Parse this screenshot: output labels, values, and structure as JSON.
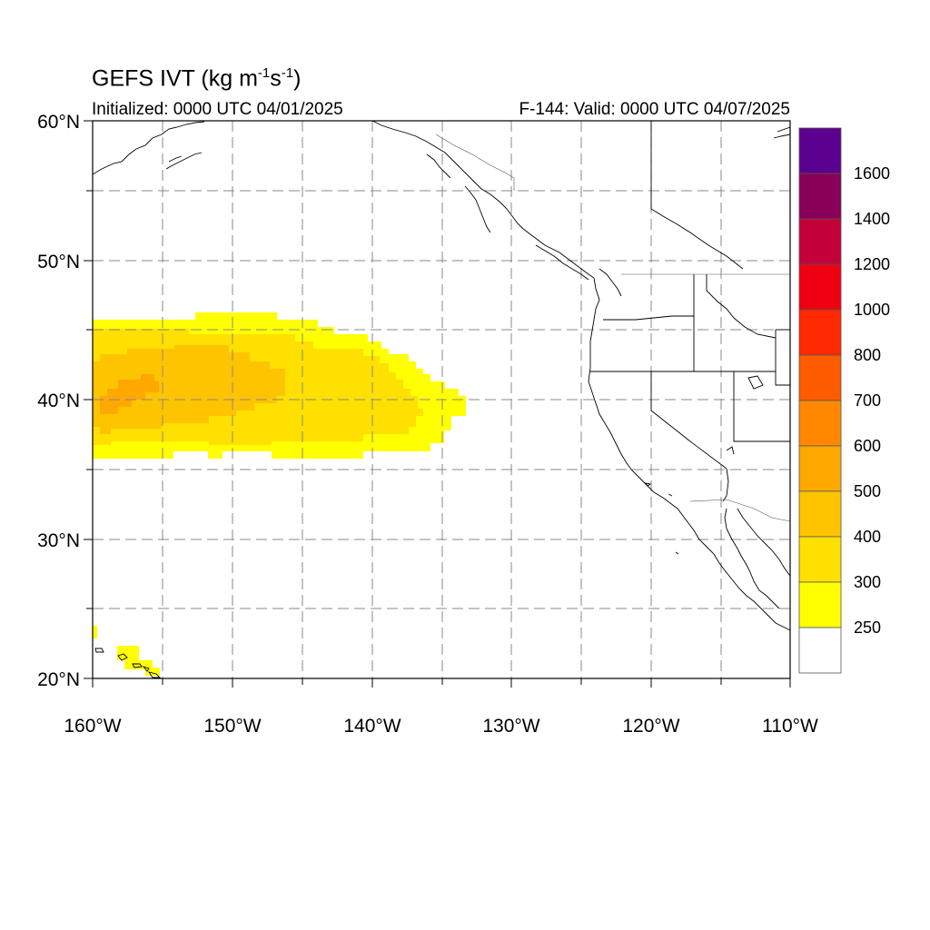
{
  "header": {
    "title_main": "GEFS IVT (kg m",
    "title_exp1": "-1",
    "title_mid": "s",
    "title_exp2": "-1",
    "title_end": ")",
    "init_text": "Initialized: 0000 UTC 04/01/2025",
    "valid_text": "F-144: Valid: 0000 UTC 04/07/2025"
  },
  "map": {
    "lon_range": [
      -160,
      -110
    ],
    "lat_range": [
      20,
      60
    ],
    "lon_labels": [
      "160°W",
      "150°W",
      "140°W",
      "130°W",
      "120°W",
      "110°W"
    ],
    "lat_labels": [
      "60°N",
      "50°N",
      "40°N",
      "30°N",
      "20°N"
    ],
    "grid": true
  },
  "colorbar": {
    "levels": [
      "250",
      "300",
      "400",
      "500",
      "600",
      "700",
      "800",
      "1000",
      "1200",
      "1400",
      "1600"
    ],
    "colors": [
      "#ffffff",
      "#ffff00",
      "#ffe000",
      "#ffc400",
      "#ffa800",
      "#ff8800",
      "#ff5c00",
      "#ff2800",
      "#ee0010",
      "#c40038",
      "#880058",
      "#5c0090"
    ]
  },
  "ivt_field": {
    "description_colors": {
      "250-300": "#ffff00",
      "300-400": "#ffe000",
      "400-500": "#ffc400",
      "500-600": "#ffa800"
    }
  }
}
